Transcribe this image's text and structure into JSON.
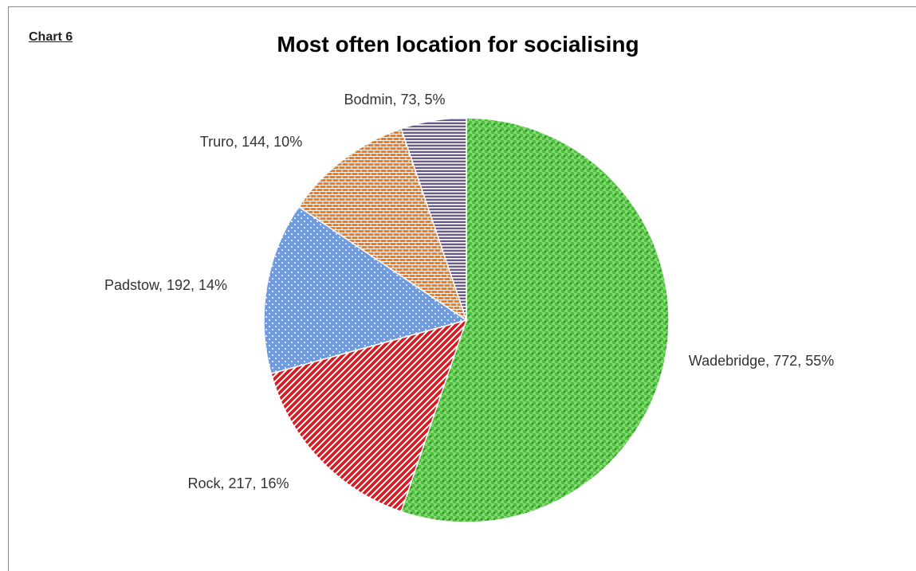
{
  "chart_data": {
    "type": "pie",
    "label": "Chart 6",
    "title": "Most often location for socialising",
    "categories": [
      "Wadebridge",
      "Rock",
      "Padstow",
      "Truro",
      "Bodmin"
    ],
    "values": [
      772,
      217,
      192,
      144,
      73
    ],
    "value_labels": [
      "Wadebridge, 772, 55%",
      "Rock, 217, 16%",
      "Padstow, 192, 14%",
      "Truro, 144, 10%",
      "Bodmin, 73, 5%"
    ],
    "colors": [
      "#4fbf3f",
      "#e8141c",
      "#6f9be0",
      "#ee7d22",
      "#6b5b8c"
    ]
  }
}
